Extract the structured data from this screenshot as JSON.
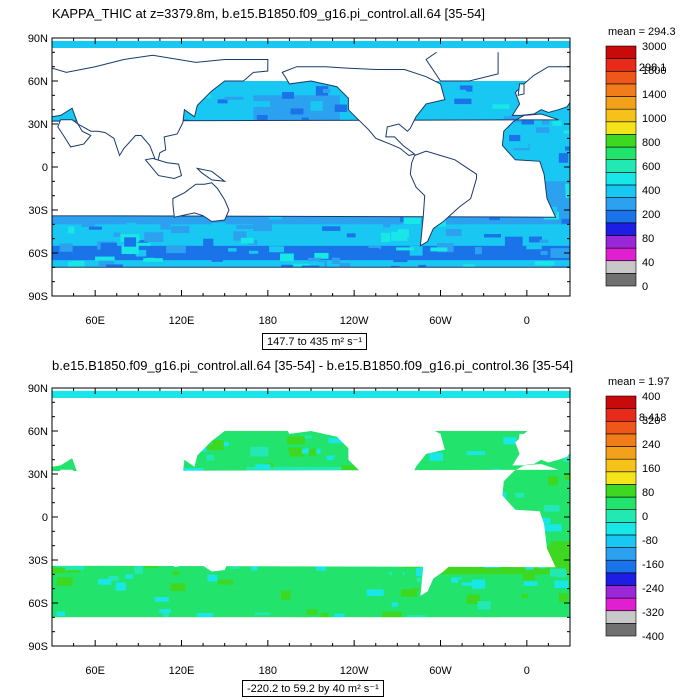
{
  "panels": [
    {
      "title": "KAPPA_THIC at z=3379.8m, b.e15.B1850.f09_g16.pi_control.all.64 [35-54]",
      "mean_label": "mean = 294.3",
      "rms_label": "rms = 298.1",
      "range_text": "147.7 to 435 m² s⁻¹",
      "colorbar": {
        "colors": [
          "#707070",
          "#c8c8c8",
          "#e020d0",
          "#9a27d8",
          "#1d1de6",
          "#1a73e8",
          "#2ba1f0",
          "#19c8f2",
          "#19e6e6",
          "#22e8b4",
          "#22e36b",
          "#3ed821",
          "#f5e41a",
          "#f6c21a",
          "#f3a11a",
          "#f07d1a",
          "#ef561a",
          "#e82a1a",
          "#c80a0a"
        ],
        "labels": [
          "0",
          "40",
          "80",
          "200",
          "400",
          "600",
          "800",
          "1000",
          "1400",
          "1800",
          "3000"
        ]
      },
      "chart_data": {
        "type": "heatmap",
        "title": "KAPPA_THIC at z=3379.8m, b.e15.B1850.f09_g16.pi_control.all.64 [35-54]",
        "x_ticks": [
          "60E",
          "120E",
          "180",
          "120W",
          "60W",
          "0"
        ],
        "y_ticks": [
          "90N",
          "60N",
          "30N",
          "0",
          "30S",
          "60S",
          "90S"
        ],
        "stats": {
          "mean": 294.3,
          "rms": 298.1,
          "min": 147.7,
          "max": 435,
          "units": "m² s⁻¹"
        }
      }
    },
    {
      "title": "b.e15.B1850.f09_g16.pi_control.all.64 [35-54] - b.e15.B1850.f09_g16.pi_control.36 [35-54]",
      "mean_label": "mean = 1.97",
      "rms_label": "rms = 8.418",
      "range_text": "-220.2 to 59.2 by 40 m² s⁻¹",
      "colorbar": {
        "colors": [
          "#707070",
          "#c8c8c8",
          "#e020d0",
          "#9a27d8",
          "#1d1de6",
          "#1a73e8",
          "#2ba1f0",
          "#19c8f2",
          "#19e6e6",
          "#22e8b4",
          "#22e36b",
          "#3ed821",
          "#f5e41a",
          "#f6c21a",
          "#f3a11a",
          "#f07d1a",
          "#ef561a",
          "#e82a1a",
          "#c80a0a"
        ],
        "labels": [
          "-400",
          "-320",
          "-240",
          "-160",
          "-80",
          "0",
          "80",
          "160",
          "240",
          "320",
          "400"
        ]
      },
      "chart_data": {
        "type": "heatmap",
        "title": "b.e15.B1850.f09_g16.pi_control.all.64 [35-54] - b.e15.B1850.f09_g16.pi_control.36 [35-54]",
        "x_ticks": [
          "60E",
          "120E",
          "180",
          "120W",
          "60W",
          "0"
        ],
        "y_ticks": [
          "90N",
          "60N",
          "30N",
          "0",
          "30S",
          "60S",
          "90S"
        ],
        "stats": {
          "mean": 1.97,
          "rms": 8.418,
          "min": -220.2,
          "max": 59.2,
          "interval": 40,
          "units": "m² s⁻¹"
        }
      }
    }
  ]
}
